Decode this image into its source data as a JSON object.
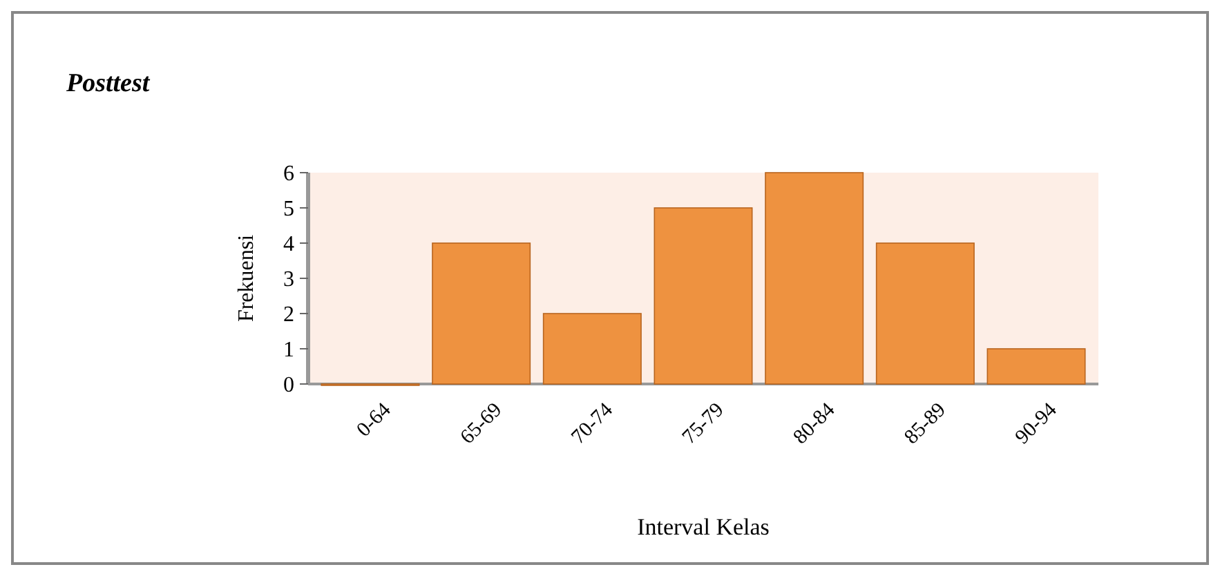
{
  "chart_data": {
    "type": "bar",
    "title": "Posttest",
    "xlabel": "Interval Kelas",
    "ylabel": "Frekuensi",
    "categories": [
      "0-64",
      "65-69",
      "70-74",
      "75-79",
      "80-84",
      "85-89",
      "90-94"
    ],
    "values": [
      0,
      4,
      2,
      5,
      6,
      4,
      1
    ],
    "color": "#ee9240",
    "ylim": [
      0,
      6
    ],
    "yticks": [
      0,
      1,
      2,
      3,
      4,
      5,
      6
    ],
    "grid": false
  }
}
